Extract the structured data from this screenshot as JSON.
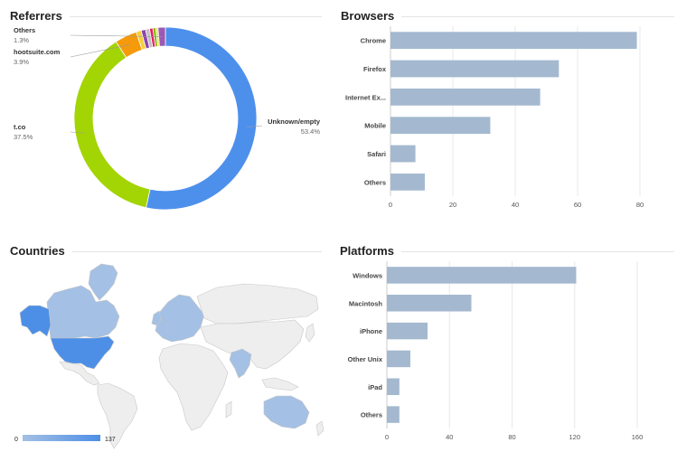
{
  "panels": {
    "referrers": "Referrers",
    "browsers": "Browsers",
    "countries": "Countries",
    "platforms": "Platforms"
  },
  "colors": {
    "bar": "#a4b9cf",
    "map_low": "#a4c0e4",
    "map_high": "#4d8fe6",
    "map_empty": "#eeeeee",
    "map_border": "#c8c8c8"
  },
  "chart_data": [
    {
      "id": "referrers",
      "type": "pie",
      "title": "Referrers",
      "slices": [
        {
          "label": "Unknown/empty",
          "pct_label": "53.4%",
          "value": 53.4,
          "color": "#4d90ec"
        },
        {
          "label": "t.co",
          "pct_label": "37.5%",
          "value": 37.5,
          "color": "#a3d404"
        },
        {
          "label": "hootsuite.com",
          "pct_label": "3.9%",
          "value": 3.9,
          "color": "#f59a0b"
        },
        {
          "label": "",
          "pct_label": "",
          "value": 0.9,
          "color": "#f4d03f"
        },
        {
          "label": "",
          "pct_label": "",
          "value": 0.8,
          "color": "#8e44ad"
        },
        {
          "label": "",
          "pct_label": "",
          "value": 0.7,
          "color": "#c0c0c0"
        },
        {
          "label": "",
          "pct_label": "",
          "value": 0.6,
          "color": "#e91e63"
        },
        {
          "label": "",
          "pct_label": "",
          "value": 0.5,
          "color": "#7fb800"
        },
        {
          "label": "",
          "pct_label": "",
          "value": 0.4,
          "color": "#f0e050"
        },
        {
          "label": "Others",
          "pct_label": "1.3%",
          "value": 1.3,
          "color": "#9b59b6"
        }
      ]
    },
    {
      "id": "browsers",
      "type": "bar",
      "orientation": "horizontal",
      "title": "Browsers",
      "categories": [
        "Chrome",
        "Firefox",
        "Internet Ex...",
        "Mobile",
        "Safari",
        "Others"
      ],
      "values": [
        79,
        54,
        48,
        32,
        8,
        11
      ],
      "xlim": [
        0,
        80
      ],
      "xticks": [
        "0",
        "20",
        "40",
        "60",
        "80"
      ],
      "grid": true
    },
    {
      "id": "countries",
      "type": "map",
      "title": "Countries",
      "legend": {
        "min": "0",
        "max": "137"
      },
      "highlighted": [
        {
          "region": "United States",
          "value": 137
        },
        {
          "region": "Alaska",
          "value": 137
        },
        {
          "region": "Canada",
          "value": 20
        },
        {
          "region": "Greenland",
          "value": 20
        },
        {
          "region": "Australia",
          "value": 45
        },
        {
          "region": "India",
          "value": 25
        },
        {
          "region": "Europe",
          "value": 15
        }
      ]
    },
    {
      "id": "platforms",
      "type": "bar",
      "orientation": "horizontal",
      "title": "Platforms",
      "categories": [
        "Windows",
        "Macintosh",
        "iPhone",
        "Other Unix",
        "iPad",
        "Others"
      ],
      "values": [
        121,
        54,
        26,
        15,
        8,
        8
      ],
      "xlim": [
        0,
        160
      ],
      "xticks": [
        "0",
        "40",
        "80",
        "120",
        "160"
      ],
      "grid": true
    }
  ]
}
